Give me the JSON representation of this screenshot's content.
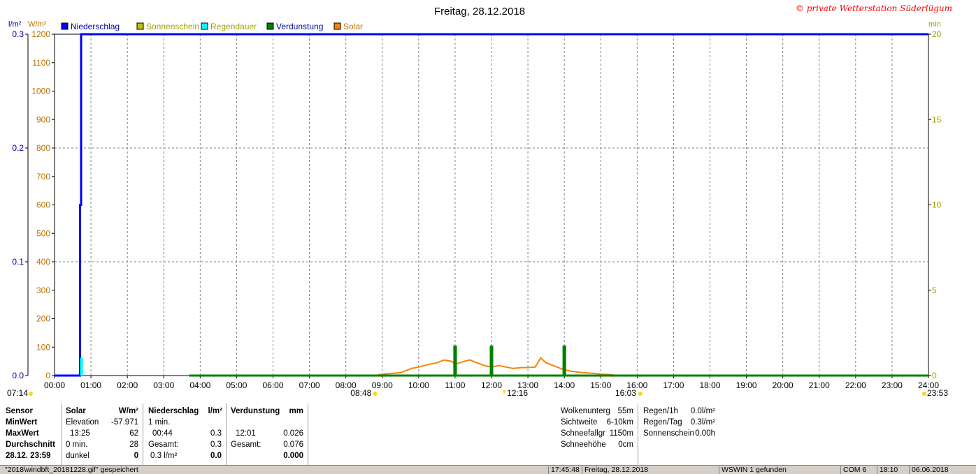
{
  "header": {
    "title": "Freitag, 28.12.2018",
    "copyright": "© private Wetterstation Süderlügum",
    "left_unit_1": "l/m²",
    "left_unit_2": "W/m²",
    "right_unit": "min"
  },
  "legend": [
    {
      "label": "Niederschlag",
      "color": "#0000ff"
    },
    {
      "label": "Sonnenschein",
      "color": "#c0c000"
    },
    {
      "label": "Regendauer",
      "color": "#00ffff"
    },
    {
      "label": "Verdunstung",
      "color": "#008000"
    },
    {
      "label": "Solar",
      "color": "#ff8000"
    }
  ],
  "colors": {
    "niederschlag": "#0000ff",
    "solar": "#ff8000",
    "verdunstung": "#008000",
    "regendauer": "#00ffff",
    "sonnenschein": "#c0c000",
    "grid": "#808080"
  },
  "chart_data": {
    "type": "line",
    "title": "Freitag, 28.12.2018",
    "x_range_hours": [
      0,
      24
    ],
    "x_ticks": [
      "00:00",
      "01:00",
      "02:00",
      "03:00",
      "04:00",
      "05:00",
      "06:00",
      "07:00",
      "08:00",
      "09:00",
      "10:00",
      "11:00",
      "12:00",
      "13:00",
      "14:00",
      "15:00",
      "16:00",
      "17:00",
      "18:00",
      "19:00",
      "20:00",
      "21:00",
      "22:00",
      "23:00",
      "24:00"
    ],
    "axes": {
      "left_precip": {
        "label": "l/m²",
        "range": [
          0,
          0.3
        ],
        "ticks": [
          "0.0",
          "0.1",
          "0.2",
          "0.3"
        ]
      },
      "left_solar": {
        "label": "W/m²",
        "range": [
          0,
          1200
        ],
        "ticks": [
          "0",
          "100",
          "200",
          "300",
          "400",
          "500",
          "600",
          "700",
          "800",
          "900",
          "1000",
          "1100",
          "1200"
        ]
      },
      "right_min": {
        "label": "min",
        "range": [
          0,
          20
        ],
        "ticks": [
          "0",
          "5",
          "10",
          "15",
          "20"
        ]
      }
    },
    "series": [
      {
        "name": "Niederschlag",
        "axis": "left_precip",
        "color": "#0000ff",
        "x": [
          0,
          0.7,
          0.7,
          0.73,
          0.73,
          24
        ],
        "y": [
          0,
          0,
          0.15,
          0.15,
          0.3,
          0.3
        ]
      },
      {
        "name": "Regendauer",
        "axis": "right_min",
        "color": "#00ffff",
        "x": [
          0.72,
          0.72,
          0.76,
          0.76
        ],
        "y": [
          0,
          1,
          1,
          0
        ]
      },
      {
        "name": "Solar",
        "axis": "left_solar",
        "color": "#ff8000",
        "x": [
          8.8,
          9.0,
          9.5,
          9.8,
          10.0,
          10.3,
          10.5,
          10.7,
          10.9,
          11.0,
          11.2,
          11.4,
          11.6,
          11.8,
          12.0,
          12.2,
          12.4,
          12.6,
          12.8,
          13.0,
          13.2,
          13.35,
          13.5,
          13.7,
          14.0,
          14.2,
          14.5,
          14.8,
          15.0,
          15.3,
          15.4
        ],
        "y": [
          0,
          5,
          10,
          25,
          30,
          40,
          45,
          55,
          50,
          40,
          48,
          55,
          45,
          35,
          30,
          35,
          30,
          25,
          28,
          28,
          30,
          62,
          45,
          35,
          20,
          15,
          10,
          8,
          5,
          3,
          0
        ]
      },
      {
        "name": "Verdunstung",
        "axis": "right_min",
        "color": "#008000",
        "x": [
          3.7,
          10.98,
          10.98,
          11.02,
          11.02,
          11.98,
          11.98,
          12.02,
          12.02,
          13.98,
          13.98,
          14.02,
          14.02,
          24
        ],
        "y": [
          0,
          0,
          1.7,
          1.7,
          0,
          0,
          1.7,
          1.7,
          0,
          0,
          1.7,
          1.7,
          0,
          0
        ]
      }
    ],
    "markers": {
      "sunrise": "08:48",
      "noon": "12:16",
      "sunset": "16:03",
      "left_bottom": "07:14",
      "right_bottom": "23:53"
    }
  },
  "panel": {
    "sensor_col": [
      "Sensor",
      "MinWert",
      "MaxWert",
      "Durchschnitt",
      "28.12.  23:59"
    ],
    "solar_header": "Solar",
    "solar_unit": "W/m²",
    "solar_rows": [
      [
        "Elevation",
        "-57.971"
      ],
      [
        "13:25",
        "62"
      ],
      [
        "0 min.",
        "28"
      ],
      [
        "dunkel",
        "0"
      ]
    ],
    "nieder_header": "Niederschlag",
    "nieder_unit": "l/m²",
    "nieder_rows": [
      [
        "1 min.",
        ""
      ],
      [
        "00:44",
        "0.3"
      ],
      [
        "Gesamt:",
        "0.3"
      ],
      [
        "0.3 l/m²",
        "0.0"
      ]
    ],
    "verd_header": "Verdunstung",
    "verd_unit": "mm",
    "verd_rows": [
      [
        "",
        ""
      ],
      [
        "12:01",
        "0.026"
      ],
      [
        "Gesamt:",
        "0.076"
      ],
      [
        "",
        "0.000"
      ]
    ],
    "weather_left": [
      [
        "Wolkenunterg",
        "55m"
      ],
      [
        "Sichtweite",
        "6-10km"
      ],
      [
        "Schneefallgr",
        "1150m"
      ],
      [
        "Schneehöhe",
        "0cm"
      ]
    ],
    "weather_right": [
      [
        "Regen/1h",
        "0.0l/m²"
      ],
      [
        "Regen/Tag",
        "0.3l/m²"
      ],
      [
        "Sonnenschein",
        "0.00h"
      ]
    ]
  },
  "status": {
    "file": "\"2018\\windbft_20181228.gif\" gespeichert",
    "time": "17:45:48",
    "date": "Freitag, 28.12.2018",
    "found": "WSWIN 1 gefunden",
    "port": "COM 6",
    "clock": "18:10",
    "today": "06.06.2018"
  }
}
